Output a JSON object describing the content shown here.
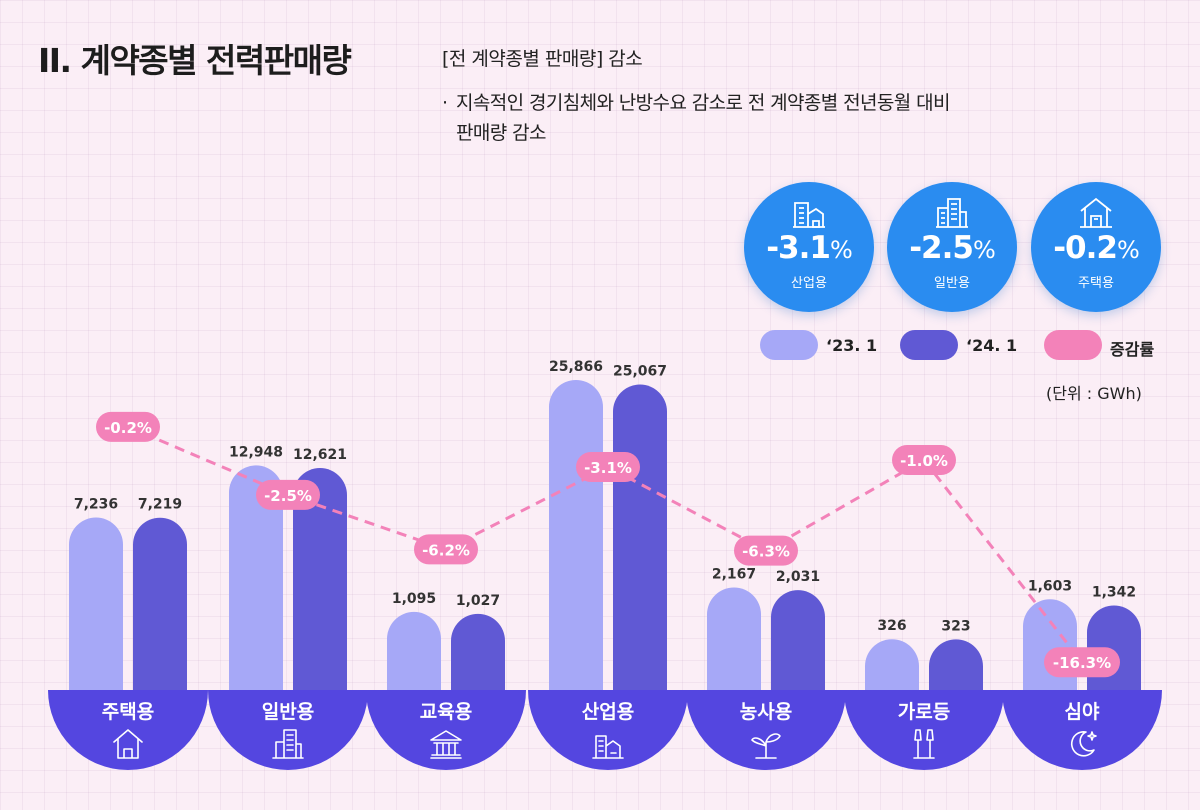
{
  "header": {
    "title": "II. 계약종별 전력판매량",
    "subheading": "[전 계약종별 판매량] 감소",
    "bullet": "·",
    "description_line1": "지속적인 경기침체와 난방수요 감소로 전 계약종별 전년동월 대비",
    "description_line2": "판매량 감소"
  },
  "highlights": [
    {
      "value": "-3.1",
      "unit": "%",
      "label": "산업용",
      "icon": "factory-icon"
    },
    {
      "value": "-2.5",
      "unit": "%",
      "label": "일반용",
      "icon": "office-building-icon"
    },
    {
      "value": "-0.2",
      "unit": "%",
      "label": "주택용",
      "icon": "house-icon"
    }
  ],
  "legend": {
    "series1": "‘23. 1",
    "series2": "‘24. 1",
    "rate": "증감률",
    "unit": "(단위 : GWh)"
  },
  "colors": {
    "series1": "#a6a8f7",
    "series2": "#6059d4",
    "rate": "#f382b9",
    "base": "#5446e0",
    "circle": "#2a8cf0"
  },
  "chart_data": {
    "type": "bar",
    "title": "계약종별 전력판매량",
    "unit": "GWh",
    "categories": [
      "주택용",
      "일반용",
      "교육용",
      "산업용",
      "농사용",
      "가로등",
      "심야"
    ],
    "category_icons": [
      "house-icon",
      "office-building-icon",
      "school-icon",
      "factory-icon",
      "sprout-icon",
      "street-lamp-icon",
      "moon-icon"
    ],
    "series": [
      {
        "name": "‘23. 1",
        "values": [
          7236,
          12948,
          1095,
          25866,
          2167,
          326,
          1603
        ]
      },
      {
        "name": "‘24. 1",
        "values": [
          7219,
          12621,
          1027,
          25067,
          2031,
          323,
          1342
        ]
      }
    ],
    "value_labels": [
      [
        "7,236",
        "12,948",
        "1,095",
        "25,866",
        "2,167",
        "326",
        "1,603"
      ],
      [
        "7,219",
        "12,621",
        "1,027",
        "25,067",
        "2,031",
        "323",
        "1,342"
      ]
    ],
    "rate_series": {
      "name": "증감률",
      "values": [
        -0.2,
        -2.5,
        -6.2,
        -3.1,
        -6.3,
        -1.0,
        -16.3
      ],
      "labels": [
        "-0.2%",
        "-2.5%",
        "-6.2%",
        "-3.1%",
        "-6.3%",
        "-1.0%",
        "-16.3%"
      ]
    }
  }
}
